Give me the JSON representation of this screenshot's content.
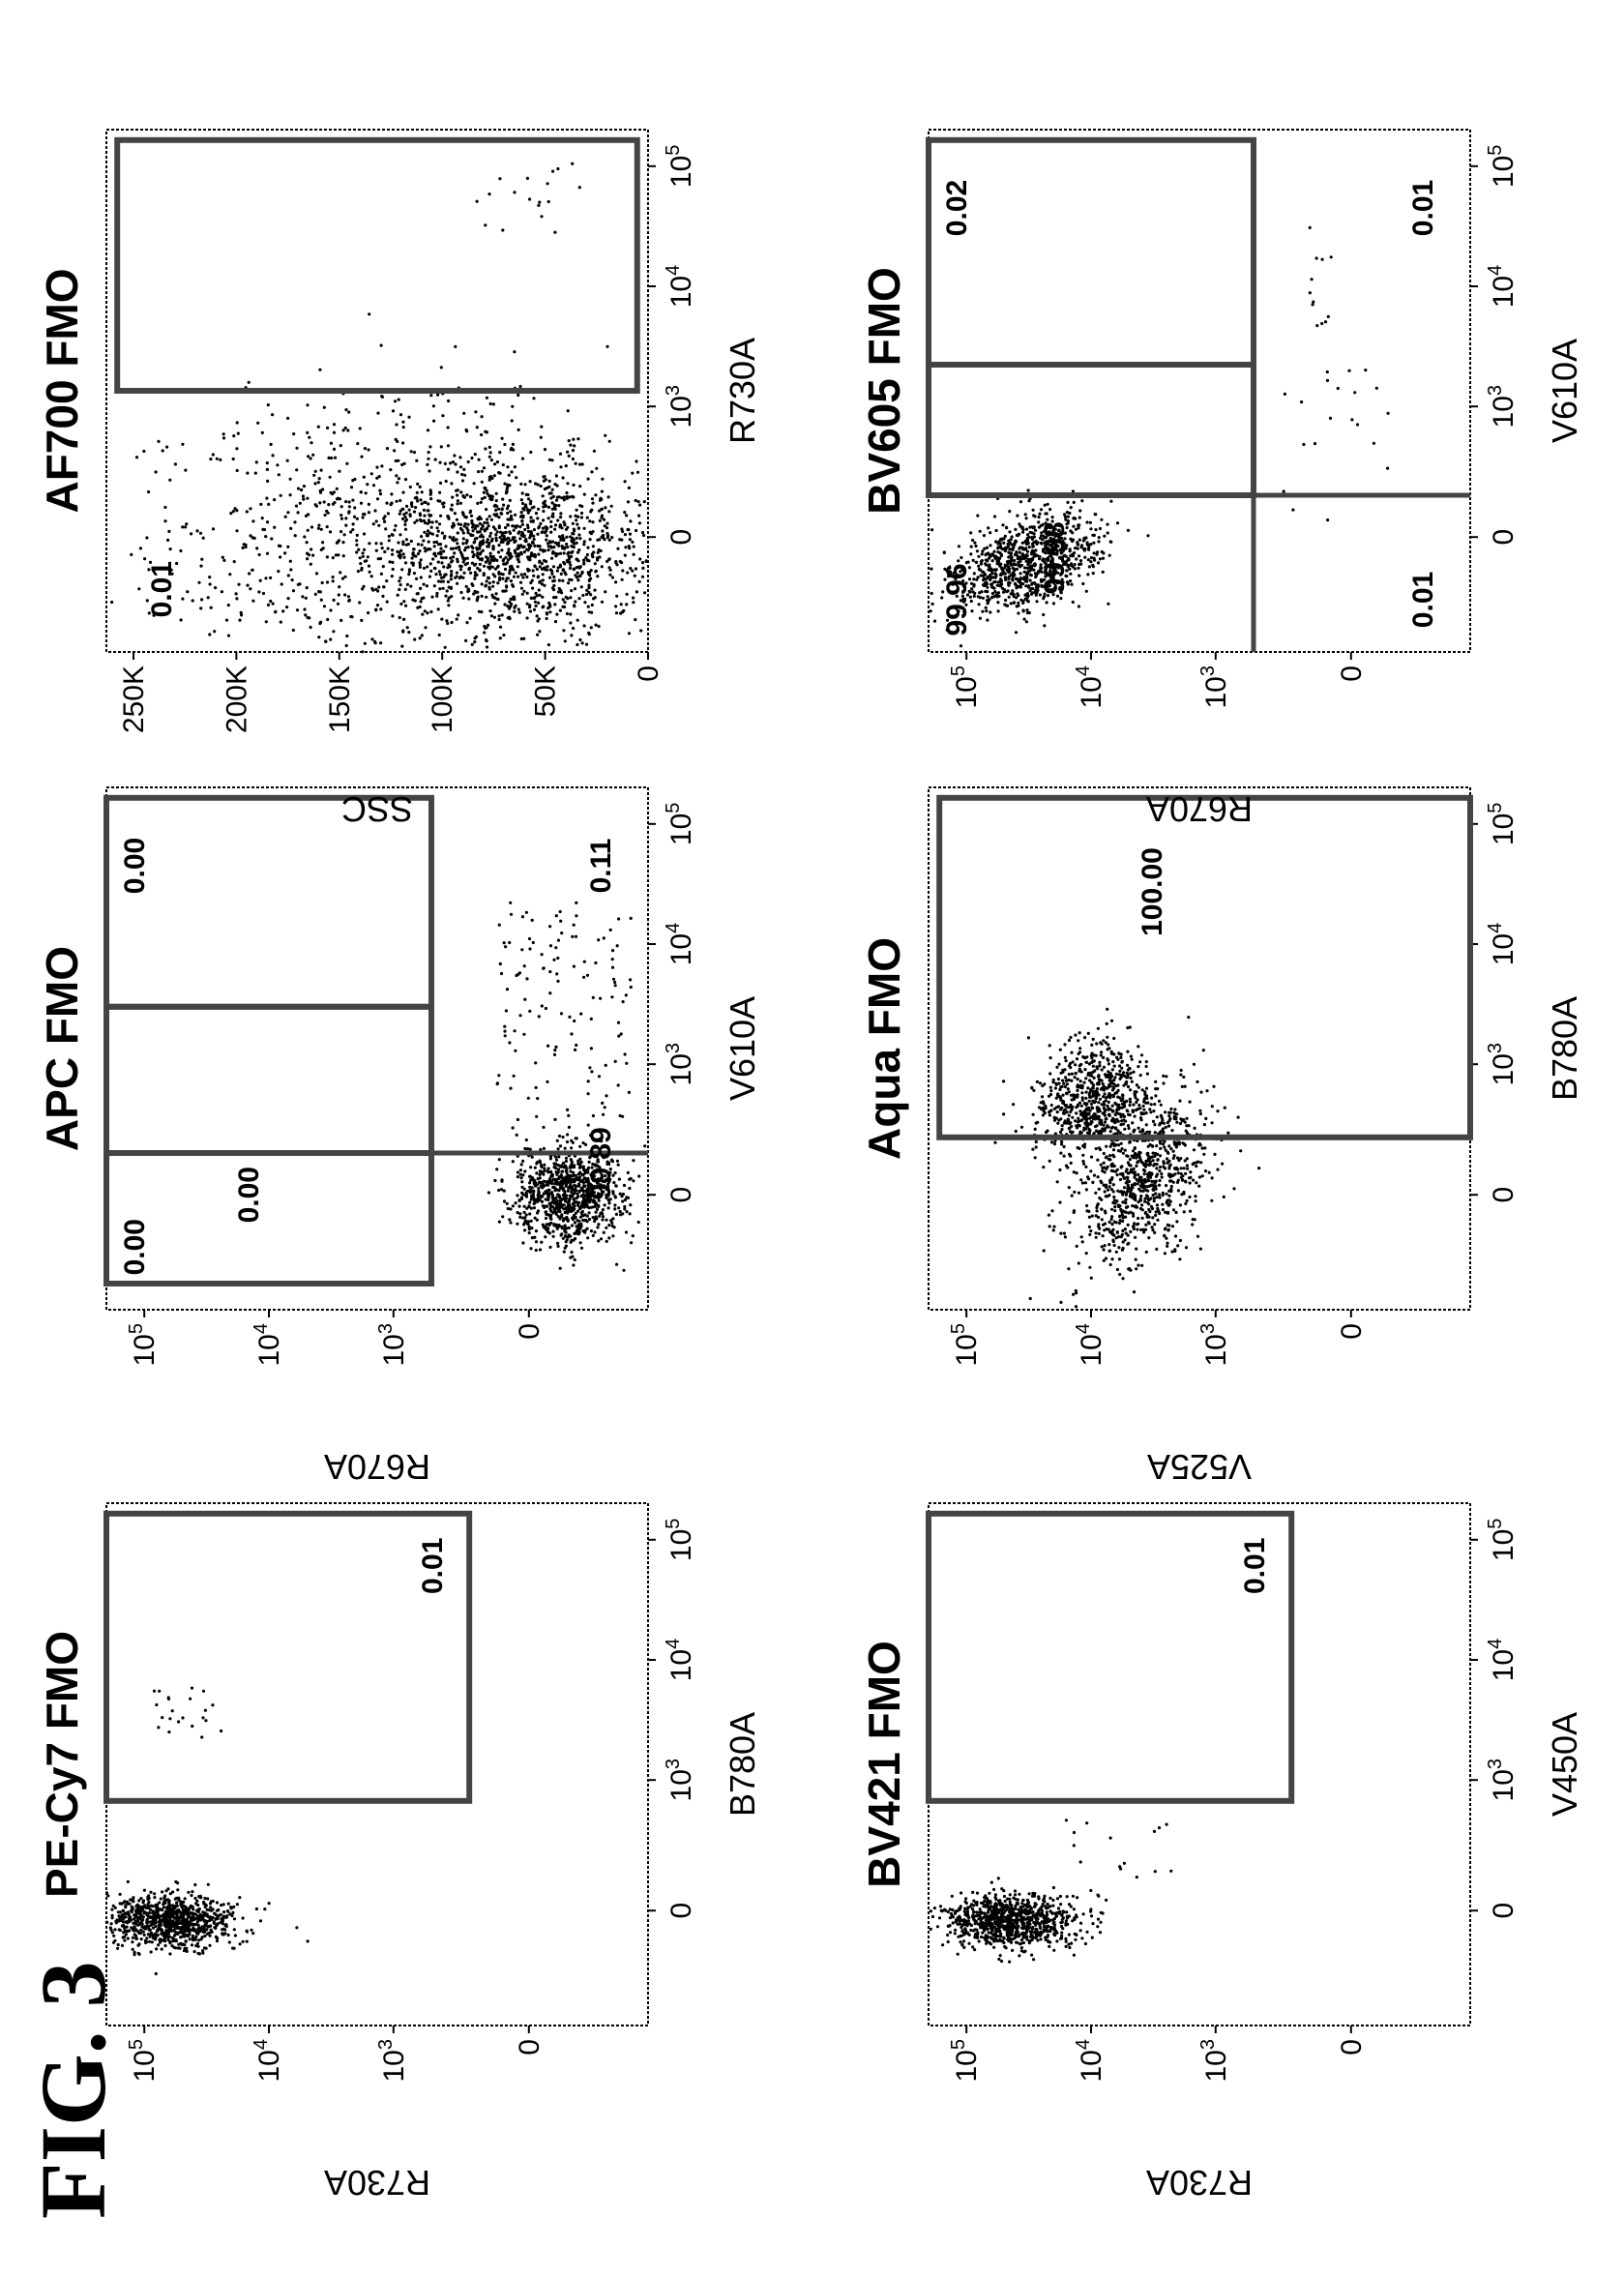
{
  "figure_label": "FIG. 3",
  "colors": {
    "ink": "#000000",
    "gate": "#444444",
    "paper": "#ffffff"
  },
  "chart_data": [
    {
      "type": "scatter",
      "title": "PE-Cy7 FMO",
      "xlabel": "B780A",
      "ylabel": "R730A",
      "x_ticks": [
        "0",
        "10^3",
        "10^4",
        "10^5"
      ],
      "y_ticks": [
        "0",
        "10^3",
        "10^4",
        "10^5"
      ],
      "gate_labels": [
        "0.01"
      ],
      "xlim": [
        -500,
        250000
      ],
      "ylim": [
        -500,
        250000
      ],
      "scale": "biexponential",
      "populations": [
        {
          "center": [
            0,
            40000
          ],
          "spread": "tight",
          "approx_percent": 99.99
        },
        {
          "center": [
            8000,
            40000
          ],
          "spread": "sparse",
          "approx_percent": 0.01
        }
      ]
    },
    {
      "type": "scatter",
      "title": "APC FMO",
      "xlabel": "V610A",
      "ylabel": "R670A",
      "x_ticks": [
        "0",
        "10^3",
        "10^4",
        "10^5"
      ],
      "y_ticks": [
        "0",
        "10^3",
        "10^4",
        "10^5"
      ],
      "gate_labels": [
        "0.00",
        "0.00",
        "0.00",
        "99.89",
        "0.11"
      ],
      "xlim": [
        -500,
        250000
      ],
      "ylim": [
        -500,
        250000
      ],
      "scale": "biexponential",
      "populations": [
        {
          "center": [
            0,
            0
          ],
          "spread": "tight",
          "approx_percent": 99.89
        },
        {
          "center": [
            3000,
            0
          ],
          "spread": "sparse",
          "approx_percent": 0.11
        }
      ]
    },
    {
      "type": "scatter",
      "title": "AF700 FMO",
      "xlabel": "R730A",
      "ylabel": "SSC",
      "x_ticks": [
        "0",
        "10^3",
        "10^4",
        "10^5"
      ],
      "y_ticks": [
        "0",
        "50K",
        "100K",
        "150K",
        "200K",
        "250K"
      ],
      "gate_labels": [
        "0.01"
      ],
      "xlim": [
        -500,
        250000
      ],
      "ylim": [
        0,
        262144
      ],
      "scale": "biexponential-x / linear-y",
      "populations": [
        {
          "center": [
            0,
            45000
          ],
          "spread": "broad",
          "approx_percent": 99.99
        },
        {
          "center": [
            10000,
            90000
          ],
          "spread": "sparse",
          "approx_percent": 0.01
        }
      ]
    },
    {
      "type": "scatter",
      "title": "BV421 FMO",
      "xlabel": "V450A",
      "ylabel": "R730A",
      "x_ticks": [
        "0",
        "10^3",
        "10^4",
        "10^5"
      ],
      "y_ticks": [
        "0",
        "10^3",
        "10^4",
        "10^5"
      ],
      "gate_labels": [
        "0.01"
      ],
      "xlim": [
        -500,
        250000
      ],
      "ylim": [
        -500,
        250000
      ],
      "scale": "biexponential",
      "populations": [
        {
          "center": [
            0,
            40000
          ],
          "spread": "tight",
          "approx_percent": 99.99
        }
      ]
    },
    {
      "type": "scatter",
      "title": "Aqua FMO",
      "xlabel": "B780A",
      "ylabel": "V525A",
      "x_ticks": [
        "0",
        "10^3",
        "10^4",
        "10^5"
      ],
      "y_ticks": [
        "0",
        "10^3",
        "10^4",
        "10^5"
      ],
      "gate_labels": [
        "100.00"
      ],
      "xlim": [
        -500,
        250000
      ],
      "ylim": [
        -500,
        250000
      ],
      "scale": "biexponential",
      "populations": [
        {
          "center": [
            9000,
            0
          ],
          "spread": "diagonal",
          "approx_percent": 100.0
        }
      ]
    },
    {
      "type": "scatter",
      "title": "BV605 FMO",
      "xlabel": "V610A",
      "ylabel": "R670A",
      "x_ticks": [
        "0",
        "10^3",
        "10^4",
        "10^5"
      ],
      "y_ticks": [
        "0",
        "10^3",
        "10^4",
        "10^5"
      ],
      "gate_labels": [
        "99.96",
        "99.98",
        "0.02",
        "0.01",
        "0.01"
      ],
      "xlim": [
        -500,
        250000
      ],
      "ylim": [
        -500,
        250000
      ],
      "scale": "biexponential",
      "populations": [
        {
          "center": [
            0,
            20000
          ],
          "spread": "tight",
          "approx_percent": 99.96
        },
        {
          "center": [
            5000,
            100
          ],
          "spread": "sparse",
          "approx_percent": 0.02
        }
      ]
    }
  ]
}
